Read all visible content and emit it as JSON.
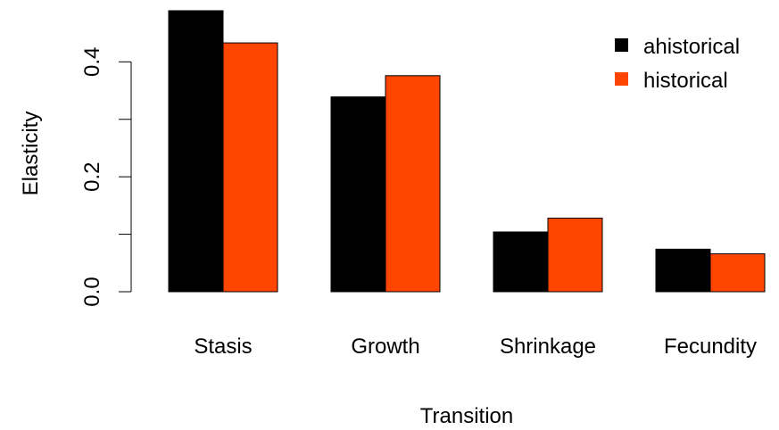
{
  "chart_data": {
    "type": "bar",
    "categories": [
      "Stasis",
      "Growth",
      "Shrinkage",
      "Fecundity"
    ],
    "series": [
      {
        "name": "ahistorical",
        "color": "#000000",
        "values": [
          0.489,
          0.339,
          0.104,
          0.074
        ]
      },
      {
        "name": "historical",
        "color": "#FF4500",
        "values": [
          0.433,
          0.376,
          0.128,
          0.066
        ]
      }
    ],
    "xlabel": "Transition",
    "ylabel": "Elasticity",
    "yticks": [
      0.0,
      0.1,
      0.2,
      0.3,
      0.4
    ],
    "ytick_labels": [
      "0.0",
      "",
      "0.2",
      "",
      "0.4"
    ],
    "ylim": [
      0,
      0.5
    ],
    "grid": false,
    "legend": {
      "position": "top-right"
    }
  }
}
